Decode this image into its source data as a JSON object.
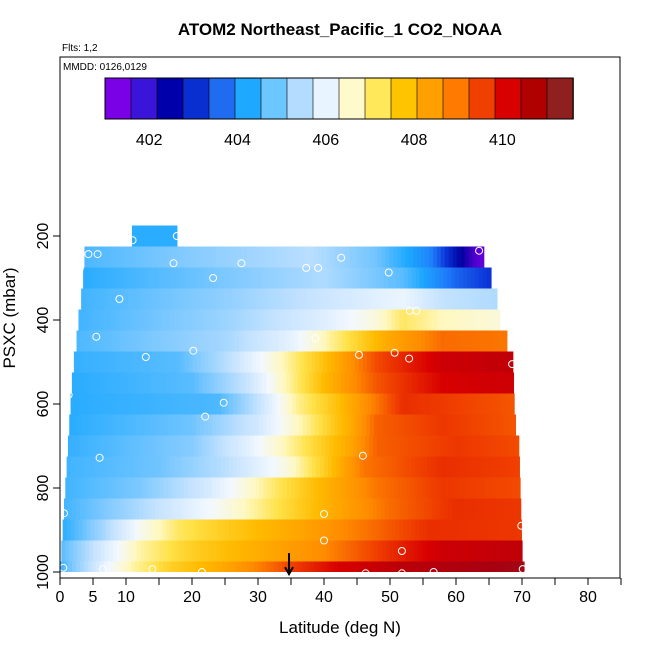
{
  "chart_data": {
    "type": "heatmap",
    "title": "ATOM2 Northeast_Pacific_1 CO2_NOAA",
    "subtitle_lines": [
      "Flts: 1,2",
      "MMDD: 0126,0129"
    ],
    "xlabel": "Latitude (deg N)",
    "ylabel": "PSXC (mbar)",
    "xlim": [
      0,
      85
    ],
    "ylim": [
      1000,
      0
    ],
    "x_major_ticks": [
      0,
      5,
      10,
      20,
      30,
      40,
      50,
      60,
      70,
      80
    ],
    "x_minor_ticks": [
      15,
      25,
      35,
      45,
      55,
      65,
      75,
      85
    ],
    "y_ticks": [
      1000,
      800,
      600,
      400,
      200
    ],
    "colorbar": {
      "range": [
        401,
        411.6
      ],
      "tick_values": [
        402,
        404,
        406,
        408,
        410
      ],
      "tick_labels": [
        "402",
        "404",
        "406",
        "408",
        "410"
      ],
      "colors": [
        "#7a00e6",
        "#3a14d8",
        "#0000aa",
        "#0a2fd0",
        "#1f6cf0",
        "#1ea8ff",
        "#6cc6ff",
        "#b4dcff",
        "#e8f4ff",
        "#fffacc",
        "#ffe85a",
        "#ffc400",
        "#ffa000",
        "#ff7a00",
        "#f04000",
        "#d80000",
        "#b00000",
        "#902020"
      ]
    },
    "color_scale": [
      {
        "v": 401.0,
        "c": "#7a00e6"
      },
      {
        "v": 402.2,
        "c": "#0000a0"
      },
      {
        "v": 403.0,
        "c": "#0a30d4"
      },
      {
        "v": 403.8,
        "c": "#1e78f8"
      },
      {
        "v": 404.5,
        "c": "#1ea8ff"
      },
      {
        "v": 405.3,
        "c": "#7cc8ff"
      },
      {
        "v": 406.0,
        "c": "#c4e2ff"
      },
      {
        "v": 406.7,
        "c": "#f2f8ff"
      },
      {
        "v": 407.2,
        "c": "#fff8c0"
      },
      {
        "v": 407.7,
        "c": "#ffe24a"
      },
      {
        "v": 408.3,
        "c": "#ffba00"
      },
      {
        "v": 409.0,
        "c": "#ff8c00"
      },
      {
        "v": 409.7,
        "c": "#f04000"
      },
      {
        "v": 410.4,
        "c": "#d80000"
      },
      {
        "v": 411.2,
        "c": "#a80010"
      },
      {
        "v": 411.6,
        "c": "#902020"
      }
    ],
    "rows": [
      {
        "p_top": 175,
        "p_bot": 225,
        "lat_start": 10.9,
        "lat_end": 17.7,
        "profile": [
          [
            10.9,
            404.6
          ],
          [
            17.7,
            404.6
          ]
        ]
      },
      {
        "p_top": 225,
        "p_bot": 275,
        "lat_start": 3.7,
        "lat_end": 64.2,
        "profile": [
          [
            3.7,
            404.9
          ],
          [
            20,
            405.4
          ],
          [
            38,
            405.9
          ],
          [
            48,
            405.2
          ],
          [
            56,
            404.0
          ],
          [
            60,
            402.5
          ],
          [
            63,
            401.4
          ],
          [
            64.2,
            401.2
          ]
        ]
      },
      {
        "p_top": 275,
        "p_bot": 325,
        "lat_start": 3.5,
        "lat_end": 65.3,
        "profile": [
          [
            3.5,
            404.6
          ],
          [
            25,
            405.3
          ],
          [
            40,
            405.8
          ],
          [
            52,
            405.0
          ],
          [
            60,
            403.6
          ],
          [
            65.3,
            403.0
          ]
        ]
      },
      {
        "p_top": 325,
        "p_bot": 375,
        "lat_start": 3.2,
        "lat_end": 66.2,
        "profile": [
          [
            3.2,
            404.8
          ],
          [
            25,
            405.5
          ],
          [
            42,
            406.2
          ],
          [
            52,
            406.6
          ],
          [
            58,
            406.0
          ],
          [
            66.2,
            405.8
          ]
        ]
      },
      {
        "p_top": 375,
        "p_bot": 425,
        "lat_start": 2.8,
        "lat_end": 66.6,
        "profile": [
          [
            2.8,
            404.8
          ],
          [
            25,
            405.6
          ],
          [
            40,
            406.4
          ],
          [
            48,
            407.0
          ],
          [
            52,
            407.6
          ],
          [
            58,
            407.2
          ],
          [
            66.6,
            407.0
          ]
        ]
      },
      {
        "p_top": 425,
        "p_bot": 475,
        "lat_start": 2.5,
        "lat_end": 67.7,
        "profile": [
          [
            2.5,
            404.9
          ],
          [
            25,
            405.7
          ],
          [
            35,
            406.5
          ],
          [
            42,
            407.5
          ],
          [
            50,
            408.6
          ],
          [
            58,
            409.3
          ],
          [
            67.7,
            409.2
          ]
        ]
      },
      {
        "p_top": 475,
        "p_bot": 525,
        "lat_start": 2.1,
        "lat_end": 68.6,
        "profile": [
          [
            2.1,
            404.7
          ],
          [
            18,
            405.0
          ],
          [
            26,
            406.0
          ],
          [
            33,
            407.1
          ],
          [
            40,
            408.2
          ],
          [
            48,
            409.6
          ],
          [
            58,
            410.6
          ],
          [
            68.6,
            410.8
          ]
        ]
      },
      {
        "p_top": 525,
        "p_bot": 575,
        "lat_start": 1.8,
        "lat_end": 68.7,
        "profile": [
          [
            1.8,
            404.6
          ],
          [
            20,
            405.0
          ],
          [
            28,
            406.0
          ],
          [
            34,
            407.2
          ],
          [
            40,
            408.3
          ],
          [
            48,
            409.5
          ],
          [
            58,
            410.4
          ],
          [
            68.7,
            410.6
          ]
        ]
      },
      {
        "p_top": 575,
        "p_bot": 625,
        "lat_start": 1.6,
        "lat_end": 68.8,
        "profile": [
          [
            1.6,
            404.6
          ],
          [
            24,
            404.9
          ],
          [
            30,
            406.0
          ],
          [
            36,
            407.4
          ],
          [
            42,
            408.2
          ],
          [
            48,
            409.2
          ],
          [
            52,
            409.9
          ],
          [
            68.8,
            409.5
          ]
        ]
      },
      {
        "p_top": 625,
        "p_bot": 675,
        "lat_start": 1.4,
        "lat_end": 69.0,
        "profile": [
          [
            1.4,
            404.6
          ],
          [
            20,
            405.2
          ],
          [
            30,
            406.2
          ],
          [
            38,
            407.5
          ],
          [
            44,
            408.5
          ],
          [
            48,
            409.4
          ],
          [
            58,
            409.8
          ],
          [
            69.0,
            409.5
          ]
        ]
      },
      {
        "p_top": 675,
        "p_bot": 725,
        "lat_start": 1.2,
        "lat_end": 69.5,
        "profile": [
          [
            1.2,
            404.7
          ],
          [
            20,
            405.4
          ],
          [
            28,
            406.4
          ],
          [
            36,
            407.5
          ],
          [
            44,
            408.6
          ],
          [
            48,
            409.4
          ],
          [
            60,
            409.8
          ],
          [
            69.5,
            409.6
          ]
        ]
      },
      {
        "p_top": 725,
        "p_bot": 775,
        "lat_start": 1.0,
        "lat_end": 69.6,
        "profile": [
          [
            1.0,
            404.8
          ],
          [
            15,
            405.2
          ],
          [
            25,
            405.9
          ],
          [
            34,
            406.9
          ],
          [
            40,
            408.0
          ],
          [
            46,
            409.2
          ],
          [
            58,
            409.9
          ],
          [
            69.6,
            409.7
          ]
        ]
      },
      {
        "p_top": 775,
        "p_bot": 825,
        "lat_start": 0.8,
        "lat_end": 69.7,
        "profile": [
          [
            0.8,
            404.8
          ],
          [
            12,
            405.3
          ],
          [
            22,
            406.2
          ],
          [
            32,
            407.5
          ],
          [
            40,
            408.4
          ],
          [
            48,
            409.2
          ],
          [
            58,
            409.8
          ],
          [
            69.7,
            409.6
          ]
        ]
      },
      {
        "p_top": 825,
        "p_bot": 875,
        "lat_start": 0.6,
        "lat_end": 69.8,
        "profile": [
          [
            0.6,
            404.8
          ],
          [
            10,
            405.6
          ],
          [
            18,
            406.3
          ],
          [
            26,
            407.0
          ],
          [
            34,
            407.8
          ],
          [
            40,
            408.4
          ],
          [
            50,
            409.3
          ],
          [
            60,
            409.9
          ],
          [
            69.8,
            409.8
          ]
        ]
      },
      {
        "p_top": 875,
        "p_bot": 925,
        "lat_start": 0.4,
        "lat_end": 69.9,
        "profile": [
          [
            0.4,
            404.6
          ],
          [
            6,
            405.6
          ],
          [
            12,
            406.8
          ],
          [
            18,
            407.6
          ],
          [
            26,
            408.1
          ],
          [
            36,
            408.6
          ],
          [
            46,
            409.2
          ],
          [
            56,
            409.9
          ],
          [
            69.9,
            409.8
          ]
        ]
      },
      {
        "p_top": 925,
        "p_bot": 975,
        "lat_start": 0.2,
        "lat_end": 70.0,
        "profile": [
          [
            0.2,
            405.0
          ],
          [
            6,
            406.2
          ],
          [
            12,
            407.3
          ],
          [
            20,
            408.0
          ],
          [
            30,
            408.5
          ],
          [
            40,
            409.0
          ],
          [
            50,
            409.9
          ],
          [
            58,
            410.6
          ],
          [
            70.0,
            410.8
          ]
        ]
      },
      {
        "p_top": 975,
        "p_bot": 1000,
        "lat_start": 0.0,
        "lat_end": 70.3,
        "profile": [
          [
            0.0,
            404.8
          ],
          [
            3,
            405.6
          ],
          [
            7,
            406.6
          ],
          [
            11,
            407.3
          ],
          [
            17,
            408.0
          ],
          [
            24,
            408.5
          ],
          [
            30,
            409.1
          ],
          [
            36,
            409.8
          ],
          [
            42,
            410.4
          ],
          [
            52,
            410.9
          ],
          [
            60,
            411.1
          ],
          [
            70.3,
            411.3
          ]
        ]
      }
    ],
    "sample_points": [
      {
        "lat": 11.0,
        "p": 210
      },
      {
        "lat": 17.7,
        "p": 200
      },
      {
        "lat": 4.3,
        "p": 243
      },
      {
        "lat": 5.7,
        "p": 243
      },
      {
        "lat": 42.6,
        "p": 252
      },
      {
        "lat": 63.5,
        "p": 235
      },
      {
        "lat": 17.2,
        "p": 265
      },
      {
        "lat": 27.5,
        "p": 265
      },
      {
        "lat": 37.3,
        "p": 276
      },
      {
        "lat": 39.1,
        "p": 276
      },
      {
        "lat": 3.0,
        "p": 277
      },
      {
        "lat": 49.8,
        "p": 287
      },
      {
        "lat": 23.2,
        "p": 300
      },
      {
        "lat": 9.0,
        "p": 350
      },
      {
        "lat": 53.0,
        "p": 378
      },
      {
        "lat": 54.0,
        "p": 378
      },
      {
        "lat": 5.5,
        "p": 440
      },
      {
        "lat": 38.7,
        "p": 443
      },
      {
        "lat": 20.2,
        "p": 473
      },
      {
        "lat": 1.5,
        "p": 483
      },
      {
        "lat": 13.0,
        "p": 488
      },
      {
        "lat": 45.3,
        "p": 483
      },
      {
        "lat": 50.7,
        "p": 478
      },
      {
        "lat": 52.9,
        "p": 492
      },
      {
        "lat": 68.5,
        "p": 505
      },
      {
        "lat": 1.3,
        "p": 578
      },
      {
        "lat": 24.8,
        "p": 597
      },
      {
        "lat": 22.0,
        "p": 630
      },
      {
        "lat": 6.0,
        "p": 728
      },
      {
        "lat": 45.9,
        "p": 723
      },
      {
        "lat": 0.6,
        "p": 860
      },
      {
        "lat": 40.0,
        "p": 862
      },
      {
        "lat": 69.9,
        "p": 890
      },
      {
        "lat": 40.0,
        "p": 925
      },
      {
        "lat": 51.8,
        "p": 950
      },
      {
        "lat": 0.5,
        "p": 990
      },
      {
        "lat": 6.5,
        "p": 993
      },
      {
        "lat": 14.0,
        "p": 993
      },
      {
        "lat": 21.5,
        "p": 1000
      },
      {
        "lat": 46.3,
        "p": 1003
      },
      {
        "lat": 51.8,
        "p": 1003
      },
      {
        "lat": 56.6,
        "p": 1000
      },
      {
        "lat": 70.1,
        "p": 993
      }
    ],
    "marker_arrow": {
      "lat": 34.7,
      "p_from": 955,
      "p_to": 1005
    }
  }
}
